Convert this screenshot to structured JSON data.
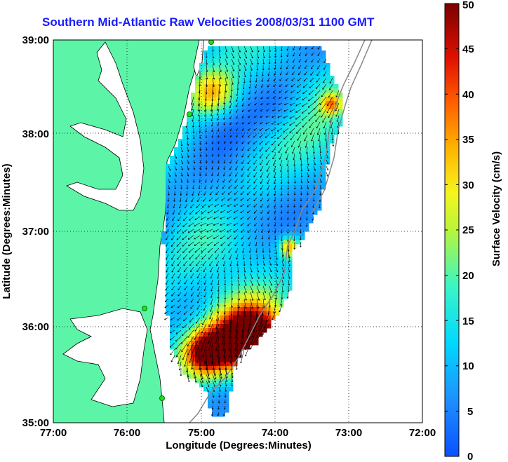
{
  "map": {
    "title": "Southern Mid-Atlantic Raw Velocities 2008/03/31 1100 GMT",
    "x_axis": {
      "label": "Longitude (Degrees:Minutes)",
      "ticks": [
        "77:00",
        "76:00",
        "75:00",
        "74:00",
        "73:00",
        "72:00"
      ]
    },
    "y_axis": {
      "label": "Latitude (Degrees:Minutes)",
      "ticks": [
        "39:00",
        "38:00",
        "37:00",
        "36:00",
        "35:00"
      ]
    },
    "colorbar": {
      "label": "Surface Velocity (cm/s)",
      "ticks": [
        "50",
        "45",
        "40",
        "35",
        "30",
        "25",
        "20",
        "15",
        "10",
        "5",
        "0"
      ],
      "min": 0,
      "max": 50
    },
    "colors": {
      "land": "#5cf5a8",
      "water_background": "#ffffff",
      "title": "#1a1aff",
      "station": "#22dd22"
    }
  }
}
